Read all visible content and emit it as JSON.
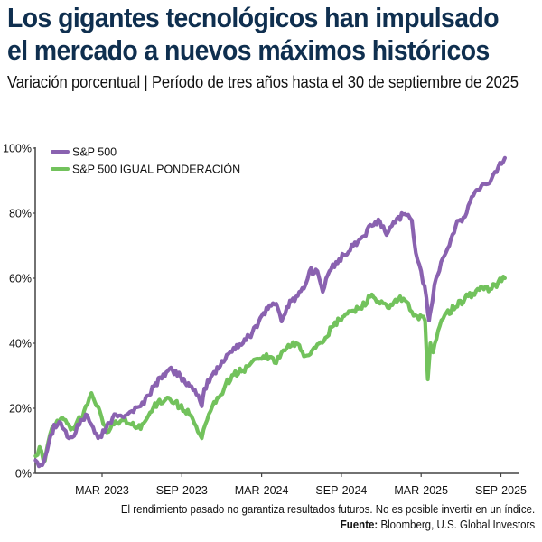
{
  "header": {
    "title_line1": "Los gigantes tecnológicos han impulsado",
    "title_line2": "el mercado a nuevos máximos históricos",
    "subtitle": "Variación porcentual | Período de tres años hasta el 30 de septiembre de 2025"
  },
  "footer": {
    "disclaimer": "El rendimiento pasado no garantiza resultados futuros. No es posible invertir en un índice.",
    "source_label": "Fuente:",
    "source_text": " Bloomberg, U.S. Global Investors"
  },
  "colors": {
    "sp500": "#8a62b0",
    "equal_weight": "#72c25c",
    "axis": "#444444",
    "title": "#0f2f4f"
  },
  "chart_data": {
    "type": "line",
    "title": "Los gigantes tecnológicos han impulsado el mercado a nuevos máximos históricos",
    "subtitle": "Variación porcentual | Período de tres años hasta el 30 de septiembre de 2025",
    "xlabel": "",
    "ylabel": "",
    "x_unit": "months since 2022-09-30",
    "xlim": [
      0,
      36
    ],
    "ylim": [
      0,
      100
    ],
    "y_ticks": [
      0,
      20,
      40,
      60,
      80,
      100
    ],
    "y_tick_labels": [
      "0%",
      "20%",
      "40%",
      "60%",
      "80%",
      "100%"
    ],
    "x_ticks": [
      5,
      11,
      17,
      23,
      29,
      35
    ],
    "x_tick_labels": [
      "MAR-2023",
      "SEP-2023",
      "MAR-2024",
      "SEP-2024",
      "MAR-2025",
      "SEP-2025"
    ],
    "grid": false,
    "legend_position": "top-left",
    "series": [
      {
        "name": "S&P 500",
        "color": "#8a62b0",
        "x": [
          0,
          0.5,
          1,
          1.4,
          1.9,
          2.5,
          2.9,
          3.4,
          3.9,
          4.2,
          4.7,
          5.2,
          5.8,
          6.4,
          7.1,
          7.9,
          8.9,
          9.6,
          10.3,
          10.9,
          11.6,
          12.1,
          12.5,
          12.7,
          13.3,
          13.9,
          14.5,
          14.9,
          15.6,
          16.3,
          16.9,
          17.6,
          18.1,
          18.5,
          18.9,
          19.6,
          20.3,
          20.6,
          21.2,
          21.6,
          22.1,
          22.6,
          23.3,
          23.9,
          24.6,
          25.3,
          25.9,
          26.4,
          26.8,
          27.3,
          27.9,
          28.3,
          28.6,
          29.0,
          29.4,
          29.6,
          29.7,
          30.0,
          30.5,
          31.0,
          31.6,
          32.3,
          32.8,
          33.3,
          33.9,
          34.3,
          34.8,
          35.3
        ],
        "values": [
          4,
          2.5,
          9.5,
          15,
          15.5,
          10.8,
          11.5,
          16.4,
          17.8,
          15,
          10.8,
          12.8,
          17.2,
          17.8,
          18.9,
          20.6,
          26.7,
          30.5,
          31.7,
          30,
          26.7,
          24.2,
          20.6,
          26.1,
          30.3,
          33.1,
          36.7,
          38.6,
          40,
          43.3,
          47.8,
          51.7,
          52.2,
          46.7,
          51.1,
          54.4,
          58,
          62.2,
          62.2,
          55.8,
          62.2,
          65,
          67.2,
          70,
          72.8,
          76.1,
          77.5,
          73.3,
          76.1,
          78.9,
          79.4,
          77.8,
          67.8,
          62.2,
          53.9,
          47,
          49.7,
          58,
          65,
          69.2,
          76.1,
          78.9,
          85,
          87.2,
          88.9,
          90.6,
          94.2,
          97
        ]
      },
      {
        "name": "S&P 500 IGUAL PONDERACIÓN",
        "color": "#72c25c",
        "x": [
          0,
          0.3,
          0.7,
          1.1,
          1.5,
          2.0,
          2.5,
          2.9,
          3.4,
          3.9,
          4.2,
          4.7,
          5.1,
          5.5,
          5.9,
          6.5,
          7.2,
          7.9,
          8.5,
          9.2,
          9.9,
          10.5,
          11.2,
          11.7,
          12.2,
          12.5,
          12.9,
          13.3,
          13.8,
          14.3,
          14.9,
          15.6,
          16.3,
          16.9,
          17.6,
          18.1,
          18.5,
          18.9,
          19.6,
          20.3,
          20.8,
          21.2,
          21.8,
          22.4,
          23.1,
          23.8,
          24.4,
          25.3,
          25.9,
          26.6,
          27.3,
          27.9,
          28.3,
          28.7,
          29.3,
          29.5,
          29.7,
          29.9,
          30.4,
          30.9,
          31.6,
          32.3,
          32.9,
          33.6,
          34.3,
          34.8,
          35.3
        ],
        "values": [
          5.3,
          8.1,
          3.9,
          12.2,
          15,
          17.2,
          15,
          13.6,
          17.2,
          21.1,
          24.7,
          20.6,
          15,
          12.8,
          15,
          16.4,
          15,
          13.6,
          17.8,
          21.9,
          23.3,
          21.9,
          19.2,
          17.8,
          12.8,
          10.8,
          16.4,
          20.6,
          23.3,
          27.5,
          30.3,
          31.7,
          34.4,
          35.3,
          35.8,
          33.9,
          37.2,
          38.6,
          40,
          36.1,
          37.8,
          39.7,
          41.7,
          45.3,
          48.1,
          50,
          50.8,
          55,
          52.2,
          50.8,
          53.6,
          52.8,
          49.7,
          48.3,
          46.9,
          28.9,
          40,
          37.2,
          45.3,
          49.4,
          51.1,
          53.9,
          55.3,
          57.2,
          56.7,
          58.9,
          60
        ]
      }
    ]
  },
  "legend": [
    {
      "label": "S&P 500"
    },
    {
      "label": "S&P 500 IGUAL PONDERACIÓN"
    }
  ]
}
